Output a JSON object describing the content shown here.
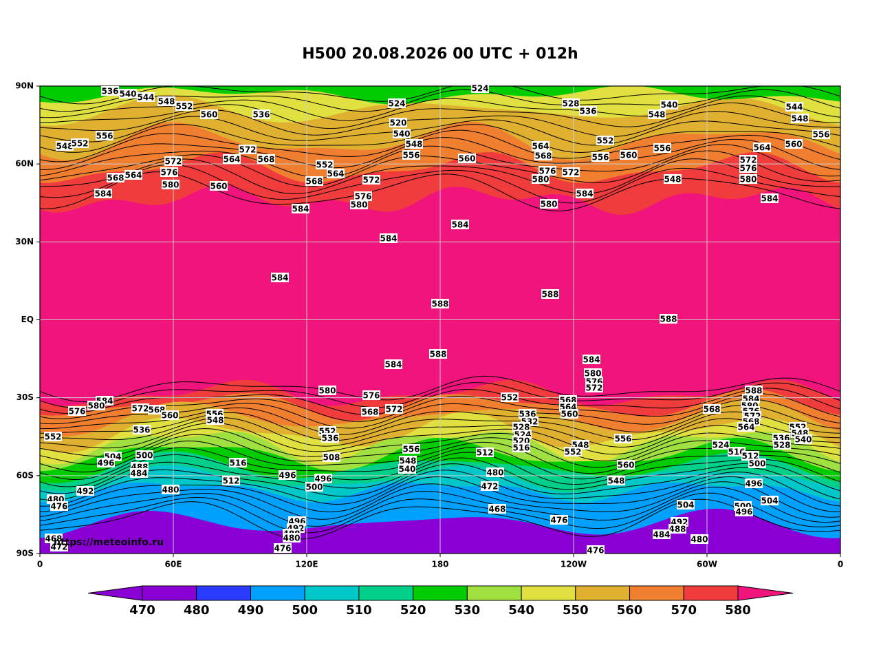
{
  "title": "H500  20.08.2026 00 UTC + 012h",
  "watermark": "https://meteoinfo.ru",
  "lat_labels": [
    "90N",
    "60N",
    "30N",
    "EQ",
    "30S",
    "60S",
    "90S"
  ],
  "lon_labels": [
    "0",
    "60E",
    "120E",
    "180",
    "120W",
    "60W",
    "0"
  ],
  "colorbar_labels": [
    470,
    480,
    490,
    500,
    510,
    520,
    530,
    540,
    550,
    560,
    570,
    580
  ],
  "contour_labels": [
    536,
    540,
    544,
    548,
    552,
    560,
    536,
    524,
    520,
    540,
    548,
    556,
    528,
    536,
    540,
    548,
    544,
    548,
    556,
    556,
    548,
    552,
    572,
    564,
    568,
    572,
    576,
    580,
    568,
    564,
    560,
    584,
    552,
    564,
    568,
    572,
    576,
    580,
    584,
    560,
    564,
    568,
    576,
    572,
    580,
    580,
    584,
    552,
    556,
    560,
    556,
    548,
    560,
    564,
    572,
    576,
    580,
    584,
    584,
    584,
    584,
    588,
    588,
    588,
    588,
    584,
    584,
    580,
    576,
    572,
    580,
    576,
    572,
    568,
    552,
    568,
    564,
    560,
    536,
    532,
    528,
    524,
    520,
    516,
    548,
    552,
    556,
    560,
    548,
    584,
    580,
    576,
    572,
    568,
    560,
    556,
    548,
    552,
    536,
    516,
    512,
    504,
    496,
    500,
    488,
    484,
    492,
    480,
    480,
    476,
    552,
    536,
    508,
    496,
    500,
    496,
    556,
    548,
    540,
    512,
    480,
    472,
    468,
    496,
    492,
    488,
    480,
    476,
    476,
    476,
    568,
    588,
    584,
    580,
    576,
    572,
    568,
    564,
    524,
    516,
    512,
    500,
    496,
    504,
    500,
    496,
    552,
    548,
    540,
    536,
    528,
    492,
    488,
    484,
    480,
    504,
    468,
    472,
    524
  ]
}
